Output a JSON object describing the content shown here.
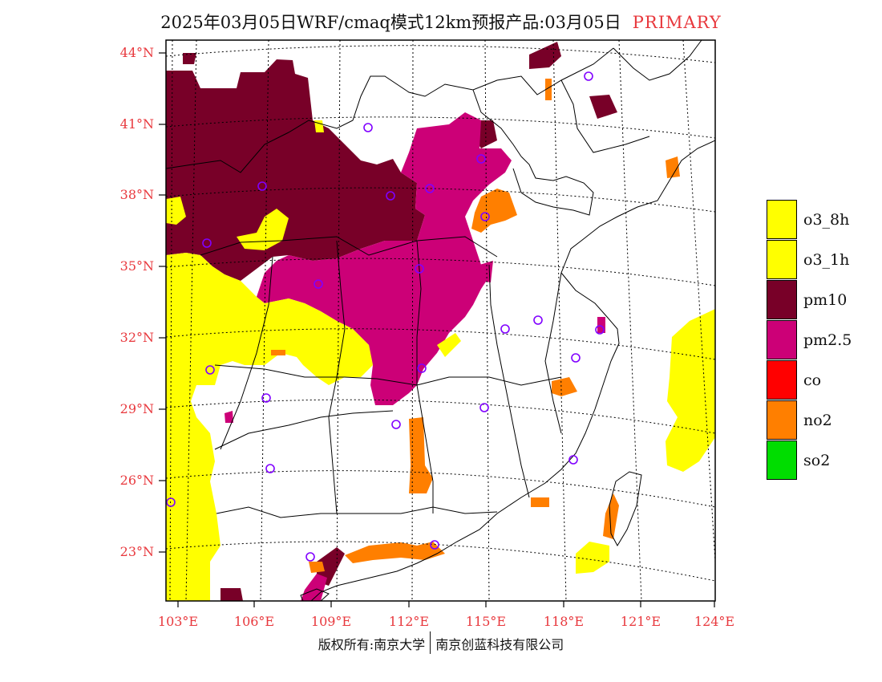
{
  "title": {
    "text": "2025年03月05日WRF/cmaq模式12km预报产品:03月05日",
    "tag": "PRIMARY"
  },
  "map": {
    "lat_labels": [
      "44°N",
      "41°N",
      "38°N",
      "35°N",
      "32°N",
      "29°N",
      "26°N",
      "23°N"
    ],
    "lon_labels": [
      "103°E",
      "106°E",
      "109°E",
      "112°E",
      "115°E",
      "118°E",
      "121°E",
      "124°E"
    ],
    "colors": {
      "pm10": "#780028",
      "pm25": "#cc0077",
      "o3": "#ffff00",
      "no2": "#ff7f00",
      "station": "#8000ff"
    }
  },
  "legend": [
    {
      "label": "o3_8h",
      "color": "#ffff00"
    },
    {
      "label": "o3_1h",
      "color": "#ffff00"
    },
    {
      "label": "pm10",
      "color": "#780028"
    },
    {
      "label": "pm2.5",
      "color": "#cc0077"
    },
    {
      "label": "co",
      "color": "#ff0000"
    },
    {
      "label": "no2",
      "color": "#ff7f00"
    },
    {
      "label": "so2",
      "color": "#00dd00"
    }
  ],
  "footer": {
    "left": "版权所有:南京大学",
    "right": "南京创蓝科技有限公司"
  }
}
